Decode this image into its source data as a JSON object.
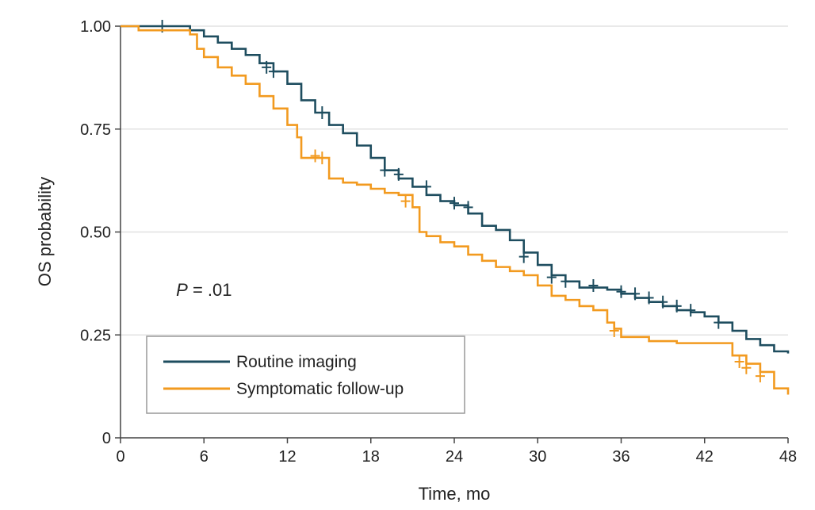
{
  "chart_data": {
    "type": "line",
    "subtype": "kaplan-meier step",
    "title": "",
    "xlabel": "Time, mo",
    "ylabel": "OS probability",
    "xlim": [
      0,
      48
    ],
    "ylim": [
      0,
      1
    ],
    "x_ticks": [
      0,
      6,
      12,
      18,
      24,
      30,
      36,
      42,
      48
    ],
    "x_tick_labels": [
      "0",
      "6",
      "12",
      "18",
      "24",
      "30",
      "36",
      "42",
      "48"
    ],
    "y_ticks": [
      0,
      0.25,
      0.5,
      0.75,
      1.0
    ],
    "y_tick_labels": [
      "0",
      "0.25",
      "0.50",
      "0.75",
      "1.00"
    ],
    "grid": "horizontal",
    "legend_position": "bottom-left",
    "annotation": {
      "italic": "P",
      "text": " = .01",
      "x": 4,
      "y": 0.36
    },
    "series": [
      {
        "name": "Routine imaging",
        "color": "#1e4d5f",
        "x": [
          0,
          4.5,
          5,
          6,
          7,
          8,
          9,
          10,
          11,
          12,
          13,
          14,
          15,
          16,
          17,
          18,
          19,
          20,
          21,
          22,
          23,
          24,
          25,
          26,
          27,
          28,
          29,
          30,
          31,
          32,
          33,
          34,
          35,
          36,
          37,
          38,
          39,
          40,
          41,
          42,
          43,
          44,
          45,
          46,
          47,
          48
        ],
        "y": [
          1.0,
          1.0,
          0.99,
          0.975,
          0.96,
          0.945,
          0.93,
          0.91,
          0.89,
          0.86,
          0.82,
          0.79,
          0.76,
          0.74,
          0.71,
          0.68,
          0.65,
          0.63,
          0.61,
          0.59,
          0.575,
          0.565,
          0.545,
          0.515,
          0.505,
          0.48,
          0.45,
          0.42,
          0.395,
          0.38,
          0.365,
          0.365,
          0.36,
          0.35,
          0.34,
          0.33,
          0.32,
          0.31,
          0.305,
          0.295,
          0.28,
          0.26,
          0.24,
          0.225,
          0.21,
          0.205
        ],
        "censor_x": [
          3,
          10.5,
          11,
          14.5,
          19,
          20,
          22,
          24,
          25,
          29,
          31,
          32,
          34,
          36,
          37,
          38,
          39,
          40,
          41,
          43
        ],
        "censor_y": [
          1.0,
          0.9,
          0.89,
          0.79,
          0.65,
          0.64,
          0.61,
          0.57,
          0.56,
          0.44,
          0.39,
          0.38,
          0.37,
          0.355,
          0.35,
          0.34,
          0.33,
          0.32,
          0.31,
          0.28
        ]
      },
      {
        "name": "Symptomatic follow-up",
        "color": "#f29a1f",
        "x": [
          0,
          1.3,
          5,
          5.5,
          6,
          7,
          8,
          9,
          10,
          11,
          12,
          12.7,
          13,
          14,
          15,
          16,
          17,
          18,
          19,
          20,
          21,
          21.5,
          22,
          23,
          24,
          25,
          26,
          27,
          28,
          29,
          30,
          31,
          32,
          33,
          34,
          35,
          35.5,
          36,
          38,
          40,
          42,
          44,
          45,
          46,
          47,
          48
        ],
        "y": [
          1.0,
          0.99,
          0.98,
          0.945,
          0.925,
          0.9,
          0.88,
          0.86,
          0.83,
          0.8,
          0.76,
          0.73,
          0.68,
          0.68,
          0.63,
          0.62,
          0.615,
          0.605,
          0.595,
          0.59,
          0.56,
          0.5,
          0.49,
          0.475,
          0.465,
          0.445,
          0.43,
          0.415,
          0.405,
          0.395,
          0.37,
          0.345,
          0.335,
          0.32,
          0.31,
          0.28,
          0.265,
          0.245,
          0.235,
          0.23,
          0.23,
          0.2,
          0.18,
          0.16,
          0.12,
          0.105
        ],
        "censor_x": [
          14,
          14.5,
          20.5,
          35.5,
          44.5,
          45,
          46
        ],
        "censor_y": [
          0.685,
          0.68,
          0.575,
          0.26,
          0.185,
          0.17,
          0.15
        ]
      }
    ]
  }
}
